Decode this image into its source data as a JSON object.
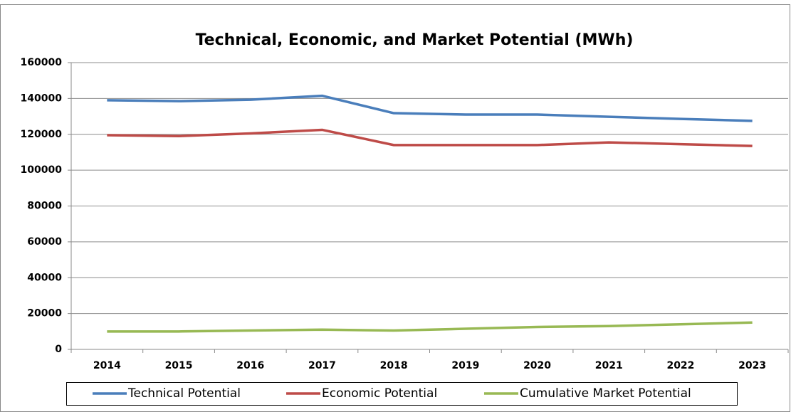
{
  "chart_data": {
    "type": "line",
    "title": "Technical, Economic, and Market Potential (MWh)",
    "categories": [
      "2014",
      "2015",
      "2016",
      "2017",
      "2018",
      "2019",
      "2020",
      "2021",
      "2022",
      "2023"
    ],
    "series": [
      {
        "name": "Technical Potential",
        "color": "#4a7ebb",
        "values": [
          139000,
          138500,
          139300,
          141500,
          131800,
          131000,
          131000,
          129800,
          128600,
          127500
        ]
      },
      {
        "name": "Economic Potential",
        "color": "#be4b48",
        "values": [
          119500,
          119000,
          120500,
          122500,
          114000,
          114000,
          114000,
          115500,
          114500,
          113500
        ]
      },
      {
        "name": "Cumulative Market Potential",
        "color": "#98b954",
        "values": [
          10000,
          10000,
          10500,
          11000,
          10500,
          11500,
          12500,
          13000,
          14000,
          15000
        ]
      }
    ],
    "ylim": [
      0,
      160000
    ],
    "yticks": [
      0,
      20000,
      40000,
      60000,
      80000,
      100000,
      120000,
      140000,
      160000
    ],
    "grid": true,
    "legend": "bottom"
  }
}
